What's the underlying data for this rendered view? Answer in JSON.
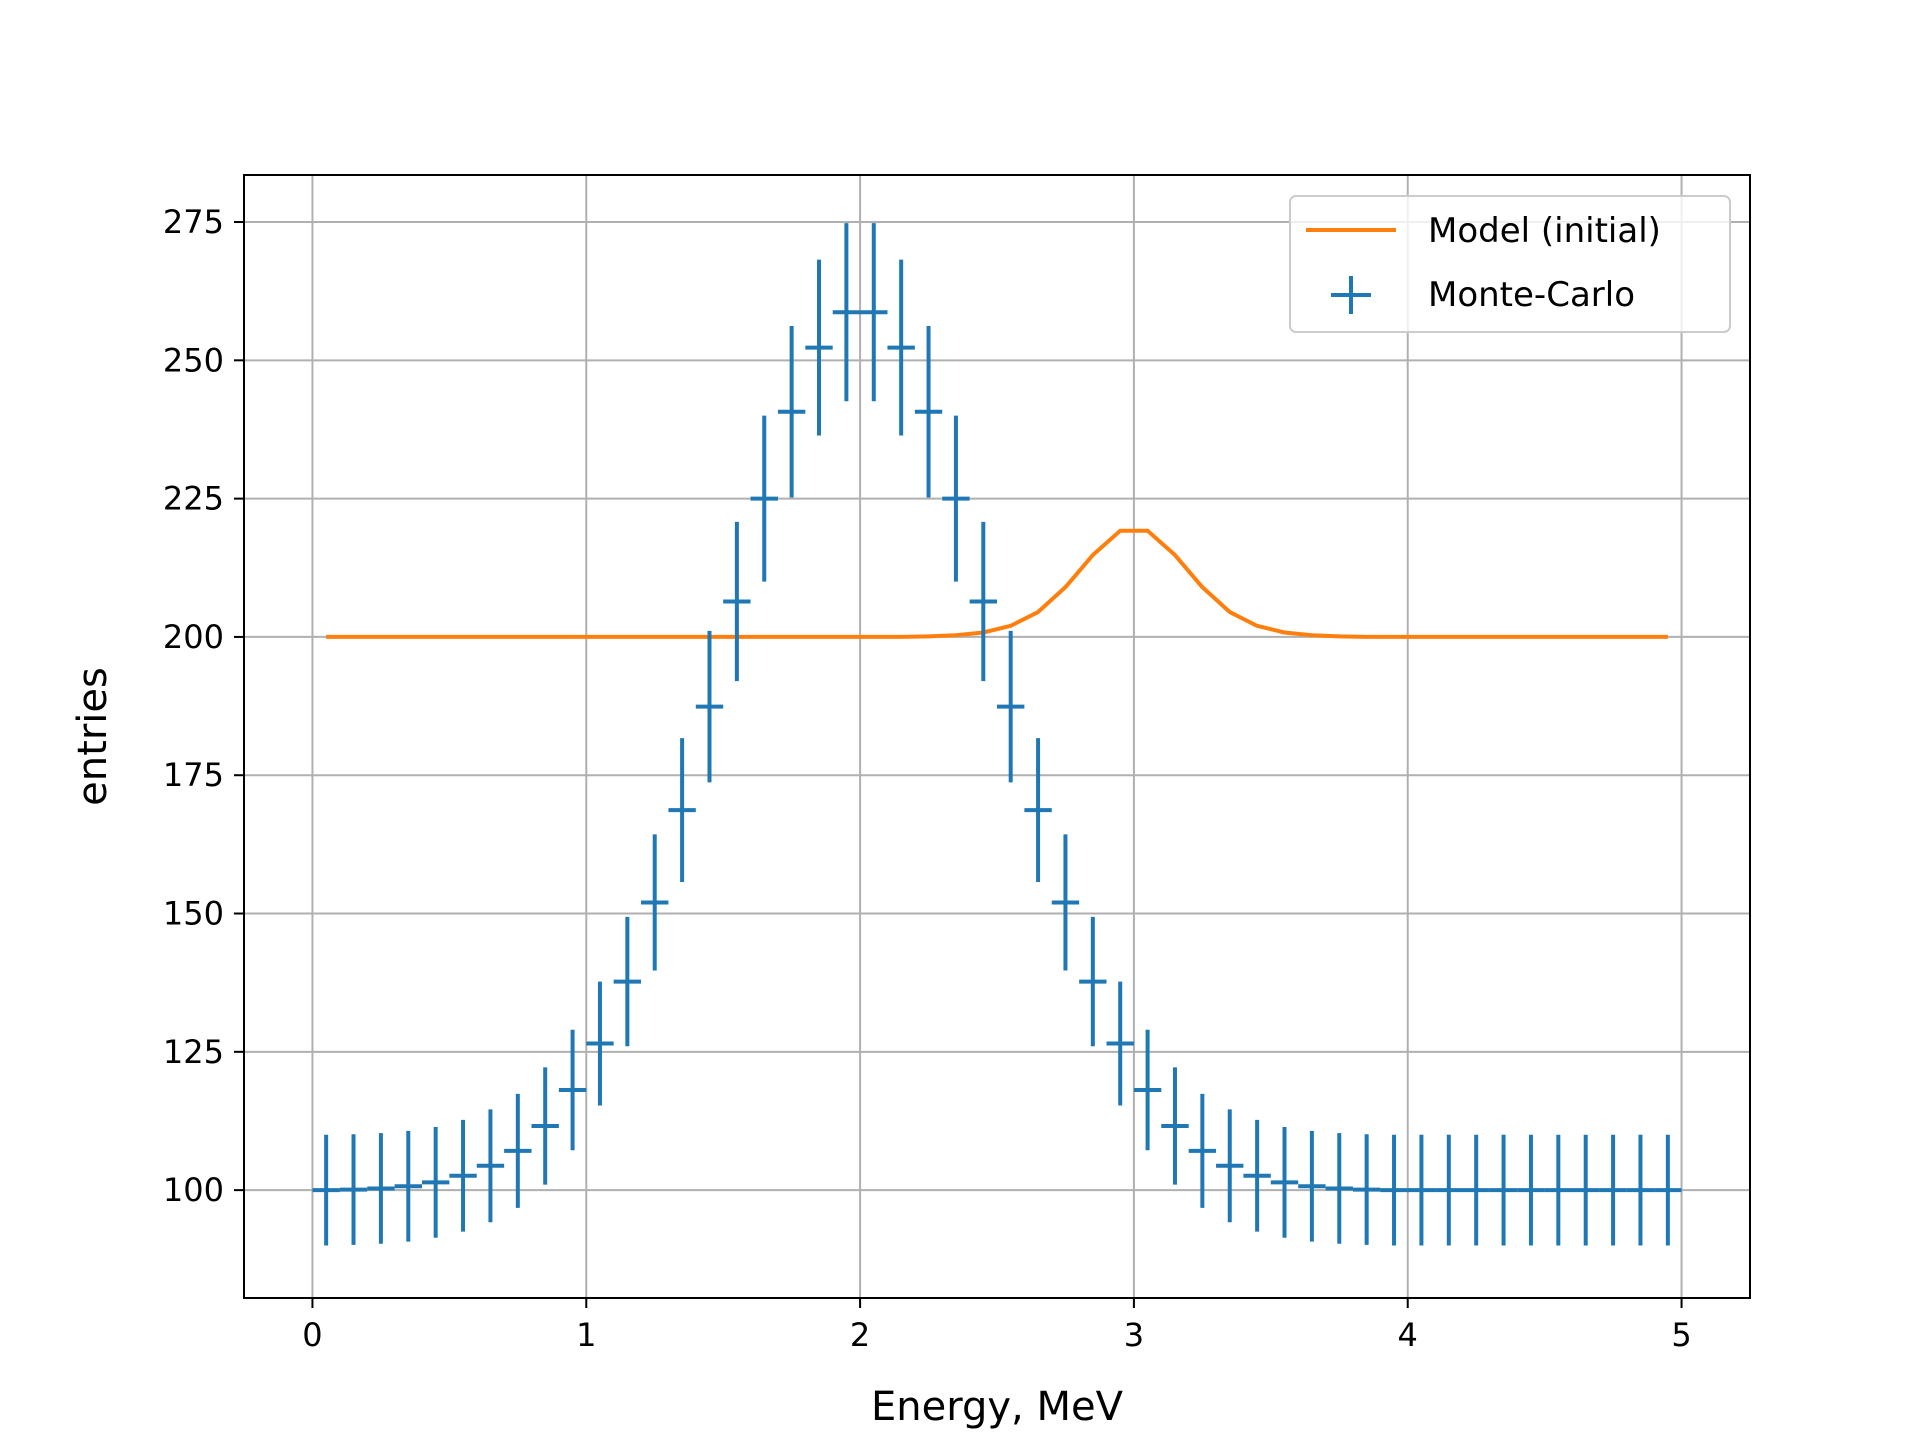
{
  "chart_data": {
    "type": "line",
    "title": "",
    "xlabel": "Energy, MeV",
    "ylabel": "entries",
    "xlim": [
      -0.25,
      5.25
    ],
    "ylim": [
      80.5,
      283.5
    ],
    "xticks": [
      0,
      1,
      2,
      3,
      4,
      5
    ],
    "xtick_labels": [
      "0",
      "1",
      "2",
      "3",
      "4",
      "5"
    ],
    "yticks": [
      100,
      125,
      150,
      175,
      200,
      225,
      250,
      275
    ],
    "ytick_labels": [
      "100",
      "125",
      "150",
      "175",
      "200",
      "225",
      "250",
      "275"
    ],
    "grid": true,
    "legend": "upper right",
    "colors": {
      "model": "#ff7f0e",
      "data": "#1f77b4",
      "grid": "#b0b0b0"
    },
    "series": [
      {
        "name": "Model (initial)",
        "kind": "line",
        "x": [
          0.05,
          0.15,
          0.25,
          0.35,
          0.45,
          0.55,
          0.65,
          0.75,
          0.85,
          0.95,
          1.05,
          1.15,
          1.25,
          1.35,
          1.45,
          1.55,
          1.65,
          1.75,
          1.85,
          1.95,
          2.05,
          2.15,
          2.25,
          2.35,
          2.45,
          2.55,
          2.65,
          2.75,
          2.85,
          2.95,
          3.05,
          3.15,
          3.25,
          3.35,
          3.45,
          3.55,
          3.65,
          3.75,
          3.85,
          3.95,
          4.05,
          4.15,
          4.25,
          4.35,
          4.45,
          4.55,
          4.65,
          4.75,
          4.85,
          4.95
        ],
        "y": [
          200,
          200,
          200,
          200,
          200,
          200,
          200,
          200,
          200,
          200,
          200,
          200,
          200,
          200,
          200,
          200,
          200,
          200,
          200,
          200,
          200,
          200,
          200.1,
          200.3,
          200.8,
          202,
          204.5,
          209,
          214.8,
          219.2,
          219.2,
          214.8,
          209,
          204.5,
          202,
          200.8,
          200.3,
          200.1,
          200,
          200,
          200,
          200,
          200,
          200,
          200,
          200,
          200,
          200,
          200,
          200
        ]
      },
      {
        "name": "Monte-Carlo",
        "kind": "errorbar",
        "x": [
          0.05,
          0.15,
          0.25,
          0.35,
          0.45,
          0.55,
          0.65,
          0.75,
          0.85,
          0.95,
          1.05,
          1.15,
          1.25,
          1.35,
          1.45,
          1.55,
          1.65,
          1.75,
          1.85,
          1.95,
          2.05,
          2.15,
          2.25,
          2.35,
          2.45,
          2.55,
          2.65,
          2.75,
          2.85,
          2.95,
          3.05,
          3.15,
          3.25,
          3.35,
          3.45,
          3.55,
          3.65,
          3.75,
          3.85,
          3.95,
          4.05,
          4.15,
          4.25,
          4.35,
          4.45,
          4.55,
          4.65,
          4.75,
          4.85,
          4.95
        ],
        "y": [
          100,
          100.1,
          100.3,
          100.7,
          101.4,
          102.6,
          104.4,
          107.1,
          111.6,
          118.1,
          126.5,
          137.7,
          152,
          168.7,
          187.4,
          206.4,
          225,
          240.7,
          252.3,
          258.7,
          258.7,
          252.3,
          240.7,
          225,
          206.4,
          187.4,
          168.7,
          152,
          137.7,
          126.5,
          118.1,
          111.6,
          107.1,
          104.4,
          102.6,
          101.4,
          100.7,
          100.3,
          100.1,
          100,
          100,
          100,
          100,
          100,
          100,
          100,
          100,
          100,
          100,
          100
        ],
        "xerr": 0.05,
        "yerr": [
          10,
          10,
          10,
          10,
          10,
          10.1,
          10.2,
          10.3,
          10.6,
          10.9,
          11.2,
          11.7,
          12.3,
          13,
          13.7,
          14.4,
          15,
          15.5,
          15.9,
          16.1,
          16.1,
          15.9,
          15.5,
          15,
          14.4,
          13.7,
          13,
          12.3,
          11.7,
          11.2,
          10.9,
          10.6,
          10.3,
          10.2,
          10.1,
          10,
          10,
          10,
          10,
          10,
          10,
          10,
          10,
          10,
          10,
          10,
          10,
          10,
          10,
          10
        ]
      }
    ]
  }
}
